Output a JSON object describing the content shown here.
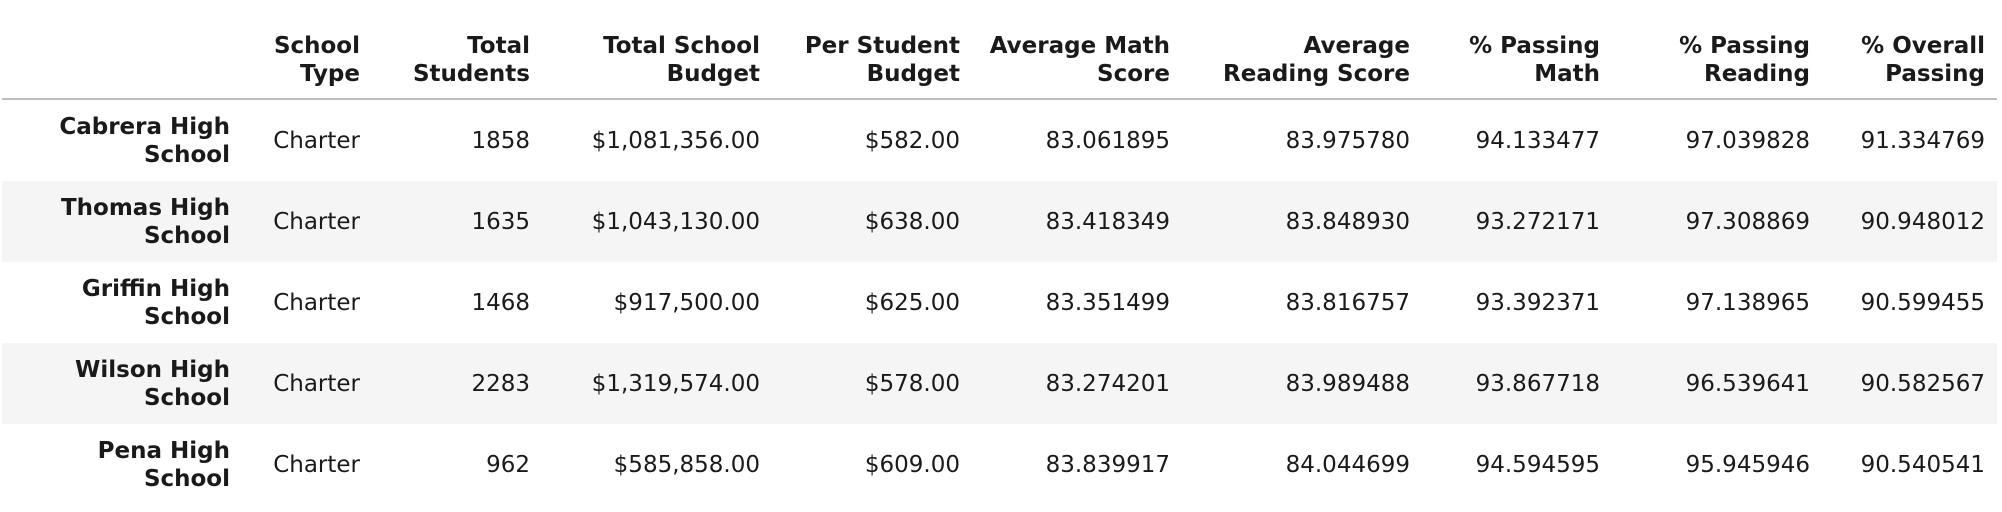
{
  "table": {
    "columns": [
      "School Type",
      "Total Students",
      "Total School Budget",
      "Per Student Budget",
      "Average Math Score",
      "Average Reading Score",
      "% Passing Math",
      "% Passing Reading",
      "% Overall Passing"
    ],
    "rows": [
      {
        "name": "Cabrera High School",
        "values": [
          "Charter",
          "1858",
          "$1,081,356.00",
          "$582.00",
          "83.061895",
          "83.975780",
          "94.133477",
          "97.039828",
          "91.334769"
        ]
      },
      {
        "name": "Thomas High School",
        "values": [
          "Charter",
          "1635",
          "$1,043,130.00",
          "$638.00",
          "83.418349",
          "83.848930",
          "93.272171",
          "97.308869",
          "90.948012"
        ]
      },
      {
        "name": "Griffin High School",
        "values": [
          "Charter",
          "1468",
          "$917,500.00",
          "$625.00",
          "83.351499",
          "83.816757",
          "93.392371",
          "97.138965",
          "90.599455"
        ]
      },
      {
        "name": "Wilson High School",
        "values": [
          "Charter",
          "2283",
          "$1,319,574.00",
          "$578.00",
          "83.274201",
          "83.989488",
          "93.867718",
          "96.539641",
          "90.582567"
        ]
      },
      {
        "name": "Pena High School",
        "values": [
          "Charter",
          "962",
          "$585,858.00",
          "$609.00",
          "83.839917",
          "84.044699",
          "94.594595",
          "95.945946",
          "90.540541"
        ]
      }
    ]
  }
}
